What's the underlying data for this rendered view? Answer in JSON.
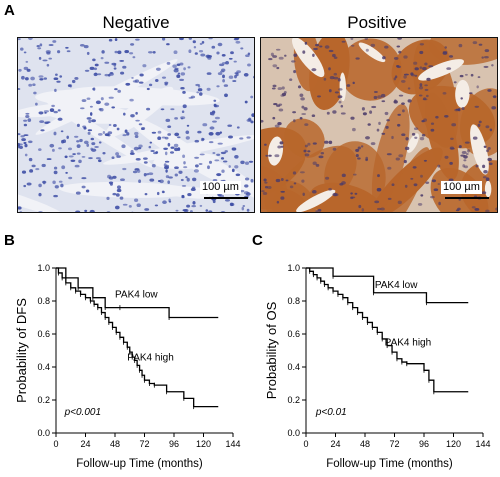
{
  "panel_a": {
    "letter": "A",
    "left": {
      "title": "Negative",
      "scale": "100 µm",
      "stain": "hematoxylin (blue)"
    },
    "right": {
      "title": "Positive",
      "scale": "100 µm",
      "stain": "DAB (brown) + hematoxylin"
    }
  },
  "colors": {
    "negative_bg": "#dfe3ef",
    "negative_nuclei": "#3f4fa6",
    "positive_bg": "#d8c3b0",
    "positive_tissue": "#b8662b",
    "positive_nuclei": "#4a3a6a"
  },
  "chart_data": [
    {
      "type": "line",
      "panel": "B",
      "xlabel": "Follow-up Time (months)",
      "ylabel": "Probability of DFS",
      "xticks": [
        "0",
        "24",
        "48",
        "72",
        "96",
        "120",
        "144"
      ],
      "yticks": [
        "0.0",
        "0.2",
        "0.4",
        "0.6",
        "0.8",
        "1.0"
      ],
      "xlim": [
        0,
        144
      ],
      "ylim": [
        0,
        1
      ],
      "annotation": "p<0.001",
      "series": [
        {
          "name": "PAK4 low",
          "x": [
            0,
            8,
            18,
            30,
            40,
            52,
            92,
            132
          ],
          "y": [
            1.0,
            0.94,
            0.88,
            0.82,
            0.76,
            0.76,
            0.7,
            0.7
          ]
        },
        {
          "name": "PAK4 high",
          "x": [
            0,
            2,
            5,
            8,
            12,
            16,
            20,
            24,
            28,
            31,
            34,
            37,
            40,
            43,
            46,
            49,
            52,
            55,
            58,
            60,
            62,
            64,
            66,
            68,
            70,
            72,
            76,
            80,
            90,
            104,
            112,
            132
          ],
          "y": [
            1.0,
            0.97,
            0.94,
            0.91,
            0.88,
            0.86,
            0.84,
            0.82,
            0.8,
            0.78,
            0.76,
            0.73,
            0.7,
            0.67,
            0.64,
            0.61,
            0.58,
            0.55,
            0.52,
            0.49,
            0.46,
            0.44,
            0.41,
            0.38,
            0.35,
            0.32,
            0.3,
            0.29,
            0.25,
            0.21,
            0.16,
            0.16
          ]
        }
      ]
    },
    {
      "type": "line",
      "panel": "C",
      "xlabel": "Follow-up Time (months)",
      "ylabel": "Probability of OS",
      "xticks": [
        "0",
        "24",
        "48",
        "72",
        "96",
        "120",
        "144"
      ],
      "yticks": [
        "0.0",
        "0.2",
        "0.4",
        "0.6",
        "0.8",
        "1.0"
      ],
      "xlim": [
        0,
        144
      ],
      "ylim": [
        0,
        1
      ],
      "annotation": "p<0.01",
      "series": [
        {
          "name": "PAK4 low",
          "x": [
            0,
            22,
            55,
            98,
            132
          ],
          "y": [
            1.0,
            0.95,
            0.85,
            0.79,
            0.79
          ]
        },
        {
          "name": "PAK4 high",
          "x": [
            0,
            3,
            6,
            9,
            12,
            15,
            18,
            22,
            26,
            30,
            34,
            38,
            42,
            46,
            50,
            54,
            58,
            62,
            66,
            70,
            74,
            78,
            82,
            96,
            100,
            104,
            132
          ],
          "y": [
            1.0,
            0.98,
            0.96,
            0.94,
            0.92,
            0.9,
            0.88,
            0.86,
            0.84,
            0.82,
            0.79,
            0.76,
            0.73,
            0.7,
            0.67,
            0.64,
            0.61,
            0.57,
            0.53,
            0.49,
            0.45,
            0.43,
            0.42,
            0.38,
            0.32,
            0.25,
            0.25
          ]
        }
      ]
    }
  ]
}
